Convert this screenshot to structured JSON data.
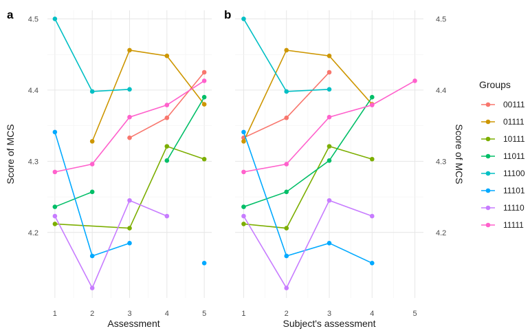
{
  "chart_data": [
    {
      "panel_tag": "a",
      "type": "line",
      "xlabel": "Assessment",
      "ylabel": "Score of MCS",
      "ylabel_side": "left",
      "x_ticks": [
        "1",
        "2",
        "3",
        "4",
        "5"
      ],
      "y_ticks": [
        "4.2",
        "4.3",
        "4.4",
        "4.5"
      ],
      "xlim": [
        0.8,
        5.2
      ],
      "ylim": [
        4.108,
        4.512
      ],
      "grid": true,
      "series": [
        {
          "name": "00111",
          "color": "#F8766D",
          "points": [
            [
              3,
              4.333
            ],
            [
              4,
              4.361
            ],
            [
              5,
              4.425
            ]
          ]
        },
        {
          "name": "01111",
          "color": "#CD9600",
          "points": [
            [
              2,
              4.328
            ],
            [
              3,
              4.456
            ],
            [
              4,
              4.448
            ],
            [
              5,
              4.38
            ]
          ]
        },
        {
          "name": "10111",
          "color": "#7CAE00",
          "points": [
            [
              1,
              4.212
            ],
            [
              3,
              4.206
            ],
            [
              4,
              4.321
            ],
            [
              5,
              4.303
            ]
          ]
        },
        {
          "name": "11011",
          "color": "#00BE67",
          "points": [
            [
              1,
              4.236
            ],
            [
              2,
              4.257
            ]
          ],
          "segments": [
            [
              [
                4,
                4.301
              ],
              [
                5,
                4.39
              ]
            ]
          ]
        },
        {
          "name": "11100",
          "color": "#00BFC4",
          "points": [
            [
              1,
              4.5
            ],
            [
              2,
              4.398
            ],
            [
              3,
              4.401
            ]
          ]
        },
        {
          "name": "11101",
          "color": "#00A9FF",
          "points": [
            [
              1,
              4.341
            ],
            [
              2,
              4.167
            ],
            [
              3,
              4.185
            ]
          ],
          "segments": [
            [
              [
                5,
                4.157
              ]
            ]
          ]
        },
        {
          "name": "11110",
          "color": "#C77CFF",
          "points": [
            [
              1,
              4.223
            ],
            [
              2,
              4.122
            ],
            [
              3,
              4.245
            ],
            [
              4,
              4.223
            ]
          ]
        },
        {
          "name": "11111",
          "color": "#FF61CC",
          "points": [
            [
              1,
              4.285
            ],
            [
              2,
              4.296
            ],
            [
              3,
              4.362
            ],
            [
              4,
              4.379
            ],
            [
              5,
              4.413
            ]
          ]
        }
      ]
    },
    {
      "panel_tag": "b",
      "type": "line",
      "xlabel": "Subject's assessment",
      "ylabel": "Score of MCS",
      "ylabel_side": "right",
      "x_ticks": [
        "1",
        "2",
        "3",
        "4",
        "5"
      ],
      "y_ticks": [
        "4.2",
        "4.3",
        "4.4",
        "4.5"
      ],
      "xlim": [
        0.8,
        5.2
      ],
      "ylim": [
        4.108,
        4.512
      ],
      "grid": true,
      "series": [
        {
          "name": "00111",
          "color": "#F8766D",
          "points": [
            [
              1,
              4.333
            ],
            [
              2,
              4.361
            ],
            [
              3,
              4.425
            ]
          ]
        },
        {
          "name": "01111",
          "color": "#CD9600",
          "points": [
            [
              1,
              4.328
            ],
            [
              2,
              4.456
            ],
            [
              3,
              4.448
            ],
            [
              4,
              4.38
            ]
          ]
        },
        {
          "name": "10111",
          "color": "#7CAE00",
          "points": [
            [
              1,
              4.212
            ],
            [
              2,
              4.206
            ],
            [
              3,
              4.321
            ],
            [
              4,
              4.303
            ]
          ]
        },
        {
          "name": "11011",
          "color": "#00BE67",
          "points": [
            [
              1,
              4.236
            ],
            [
              2,
              4.257
            ],
            [
              3,
              4.301
            ],
            [
              4,
              4.39
            ]
          ]
        },
        {
          "name": "11100",
          "color": "#00BFC4",
          "points": [
            [
              1,
              4.5
            ],
            [
              2,
              4.398
            ],
            [
              3,
              4.401
            ]
          ]
        },
        {
          "name": "11101",
          "color": "#00A9FF",
          "points": [
            [
              1,
              4.341
            ],
            [
              2,
              4.167
            ],
            [
              3,
              4.185
            ],
            [
              4,
              4.157
            ]
          ]
        },
        {
          "name": "11110",
          "color": "#C77CFF",
          "points": [
            [
              1,
              4.223
            ],
            [
              2,
              4.122
            ],
            [
              3,
              4.245
            ],
            [
              4,
              4.223
            ]
          ]
        },
        {
          "name": "11111",
          "color": "#FF61CC",
          "points": [
            [
              1,
              4.285
            ],
            [
              2,
              4.296
            ],
            [
              3,
              4.362
            ],
            [
              4,
              4.379
            ],
            [
              5,
              4.413
            ]
          ]
        }
      ]
    }
  ],
  "legend": {
    "title": "Groups",
    "placement": "right",
    "items": [
      {
        "label": "00111",
        "color": "#F8766D"
      },
      {
        "label": "01111",
        "color": "#CD9600"
      },
      {
        "label": "10111",
        "color": "#7CAE00"
      },
      {
        "label": "11011",
        "color": "#00BE67"
      },
      {
        "label": "11100",
        "color": "#00BFC4"
      },
      {
        "label": "11101",
        "color": "#00A9FF"
      },
      {
        "label": "11110",
        "color": "#C77CFF"
      },
      {
        "label": "11111",
        "color": "#FF61CC"
      }
    ]
  }
}
